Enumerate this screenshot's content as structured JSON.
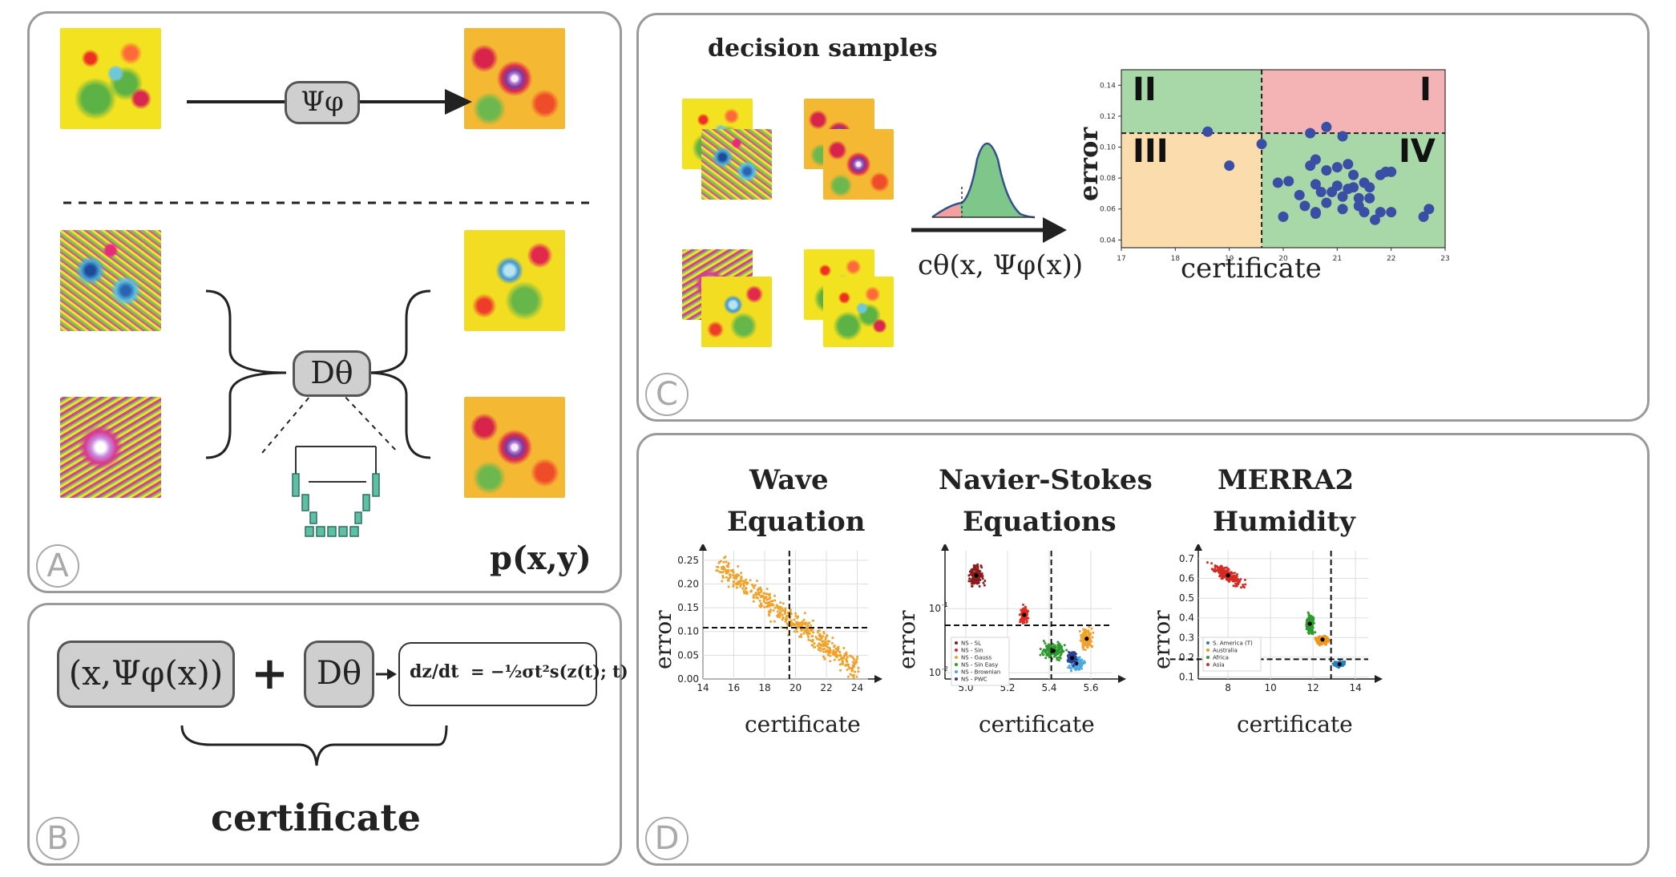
{
  "panel_a": {
    "label": "A",
    "psi_label": "Ψφ",
    "d_label": "Dθ",
    "output_label": "p(x,y)"
  },
  "panel_b": {
    "label": "B",
    "input_label": "(x,Ψφ(x))",
    "plus": "+",
    "d_label": "Dθ",
    "ode_lhs": "dz/dt",
    "ode_rhs": "= −½σt²s(z(t); t)",
    "certificate_label": "certificate"
  },
  "panel_c": {
    "label": "C",
    "title": "decision samples",
    "arrow_label": "cθ(x, Ψφ(x))",
    "chart_data": {
      "type": "scatter",
      "xlabel": "certificate",
      "ylabel": "error",
      "xlim": [
        17,
        23
      ],
      "ylim": [
        0.035,
        0.15
      ],
      "x_ticks": [
        "17",
        "18",
        "19",
        "20",
        "21",
        "22",
        "23"
      ],
      "y_ticks": [
        "0.04",
        "0.06",
        "0.08",
        "0.10",
        "0.12",
        "0.14"
      ],
      "x_threshold": 19.6,
      "y_threshold": 0.109,
      "quadrants": [
        "I",
        "II",
        "III",
        "IV"
      ],
      "quadrant_colors": {
        "I": "#f4b4b6",
        "II": "#a8d8a7",
        "III": "#fbdcac",
        "IV": "#a8d8a7"
      },
      "point_color": "#3b4ea5",
      "points": [
        [
          18.6,
          0.11
        ],
        [
          19.0,
          0.088
        ],
        [
          19.6,
          0.102
        ],
        [
          20.8,
          0.113
        ],
        [
          20.5,
          0.109
        ],
        [
          21.1,
          0.107
        ],
        [
          20.6,
          0.092
        ],
        [
          20.5,
          0.088
        ],
        [
          21.0,
          0.087
        ],
        [
          21.2,
          0.089
        ],
        [
          20.8,
          0.085
        ],
        [
          21.3,
          0.082
        ],
        [
          21.8,
          0.082
        ],
        [
          21.9,
          0.084
        ],
        [
          22.0,
          0.084
        ],
        [
          19.9,
          0.077
        ],
        [
          20.1,
          0.078
        ],
        [
          20.6,
          0.076
        ],
        [
          21.0,
          0.075
        ],
        [
          21.3,
          0.074
        ],
        [
          21.5,
          0.077
        ],
        [
          21.6,
          0.074
        ],
        [
          21.2,
          0.073
        ],
        [
          20.7,
          0.071
        ],
        [
          21.1,
          0.068
        ],
        [
          20.9,
          0.071
        ],
        [
          20.3,
          0.069
        ],
        [
          21.4,
          0.067
        ],
        [
          21.6,
          0.067
        ],
        [
          20.8,
          0.064
        ],
        [
          20.4,
          0.062
        ],
        [
          21.1,
          0.06
        ],
        [
          21.5,
          0.058
        ],
        [
          20.6,
          0.057
        ],
        [
          21.8,
          0.058
        ],
        [
          22.0,
          0.058
        ],
        [
          21.7,
          0.053
        ],
        [
          22.6,
          0.055
        ],
        [
          22.7,
          0.06
        ],
        [
          20.0,
          0.055
        ],
        [
          20.6,
          0.058
        ],
        [
          21.4,
          0.062
        ]
      ]
    }
  },
  "panel_d": {
    "label": "D",
    "charts": [
      {
        "title_line1": "Wave",
        "title_line2": "Equation",
        "chart_data": {
          "type": "scatter",
          "xlabel": "certificate",
          "ylabel": "error",
          "xlim": [
            14,
            24.7
          ],
          "ylim": [
            0,
            0.27
          ],
          "x_ticks": [
            "14",
            "16",
            "18",
            "20",
            "22",
            "24"
          ],
          "y_ticks": [
            "0.00",
            "0.05",
            "0.10",
            "0.15",
            "0.20",
            "0.25"
          ],
          "x_threshold": 19.6,
          "y_threshold": 0.108,
          "clusters": [
            {
              "color": "#f2a22a",
              "trend": [
                [
                  15.0,
                  0.24
                ],
                [
                  24.0,
                  0.02
                ]
              ],
              "spread": 0.028,
              "n": 520
            }
          ]
        }
      },
      {
        "title_line1": "Navier-Stokes",
        "title_line2": "Equations",
        "chart_data": {
          "type": "scatter",
          "xlabel": "certificate",
          "ylabel": "error",
          "y_scale": "log",
          "xlim": [
            4.9,
            5.7
          ],
          "ylim": [
            0.008,
            0.8
          ],
          "x_ticks": [
            "5.0",
            "5.2",
            "5.4",
            "5.6"
          ],
          "y_ticks": [
            "10^-2",
            "10^-1"
          ],
          "x_threshold": 5.41,
          "y_threshold": 0.055,
          "legend": [
            "NS - SL",
            "NS - Sin",
            "NS - Gauss",
            "NS - Sin Easy",
            "NS - Brownian",
            "NS - PWC"
          ],
          "series": [
            {
              "name": "NS - SL",
              "color": "#8b1c1c",
              "center": [
                5.05,
                0.33
              ],
              "spread": [
                0.035,
                0.08
              ]
            },
            {
              "name": "NS - Sin",
              "color": "#e02a22",
              "center": [
                5.28,
                0.08
              ],
              "spread": [
                0.018,
                0.06
              ]
            },
            {
              "name": "NS - Gauss",
              "color": "#f2a22a",
              "center": [
                5.58,
                0.034
              ],
              "spread": [
                0.03,
                0.08
              ]
            },
            {
              "name": "NS - Sin Easy",
              "color": "#2e9a2e",
              "center": [
                5.42,
                0.022
              ],
              "spread": [
                0.06,
                0.06
              ]
            },
            {
              "name": "NS - Brownian",
              "color": "#4aa8e0",
              "center": [
                5.53,
                0.014
              ],
              "spread": [
                0.035,
                0.05
              ]
            },
            {
              "name": "NS - PWC",
              "color": "#2a3f95",
              "center": [
                5.51,
                0.017
              ],
              "spread": [
                0.02,
                0.04
              ]
            }
          ]
        }
      },
      {
        "title_line1": "MERRA2",
        "title_line2": "Humidity",
        "chart_data": {
          "type": "scatter",
          "xlabel": "certificate",
          "ylabel": "error",
          "xlim": [
            6.6,
            14.6
          ],
          "ylim": [
            0.09,
            0.74
          ],
          "x_ticks": [
            "8",
            "10",
            "12",
            "14"
          ],
          "y_ticks": [
            "0.1",
            "0.2",
            "0.3",
            "0.4",
            "0.5",
            "0.6",
            "0.7"
          ],
          "x_threshold": 12.85,
          "y_threshold": 0.19,
          "legend": [
            "S. America (T)",
            "Australia",
            "Africa",
            "Asia"
          ],
          "series": [
            {
              "name": "S. America (T)",
              "color": "#2a7fbf",
              "center": [
                13.25,
                0.165
              ],
              "spread": [
                0.3,
                0.015
              ]
            },
            {
              "name": "Australia",
              "color": "#f0951e",
              "center": [
                12.45,
                0.29
              ],
              "spread": [
                0.35,
                0.025
              ]
            },
            {
              "name": "Africa",
              "color": "#2e9a2e",
              "center": [
                11.85,
                0.37
              ],
              "spread": [
                0.2,
                0.05
              ]
            },
            {
              "name": "Asia",
              "color": "#d62a22",
              "center": [
                8.0,
                0.615
              ],
              "spread": [
                0.9,
                0.035
              ],
              "tilt": -0.06
            }
          ]
        }
      }
    ]
  }
}
